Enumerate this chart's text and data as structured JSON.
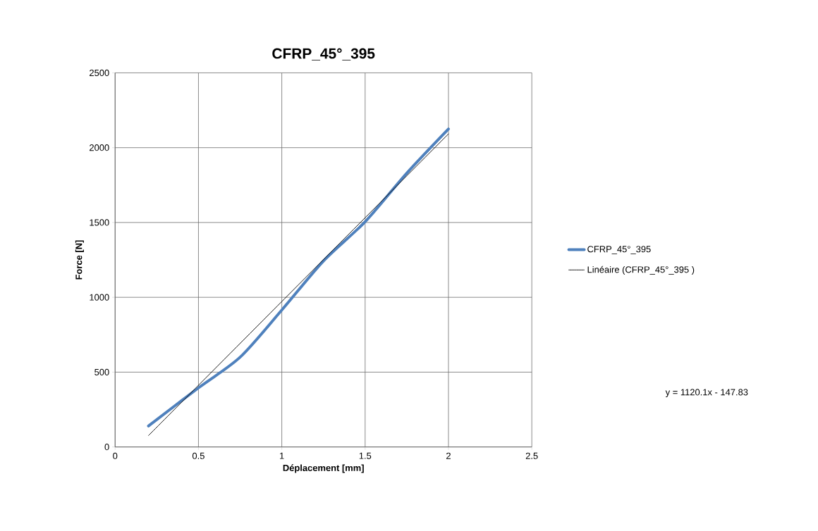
{
  "chart_data": {
    "type": "line",
    "title": "CFRP_45°_395",
    "xlabel": "Déplacement [mm]",
    "ylabel": "Force [N]",
    "xlim": [
      0,
      2.5
    ],
    "ylim": [
      0,
      2500
    ],
    "xticks": [
      0,
      0.5,
      1,
      1.5,
      2,
      2.5
    ],
    "yticks": [
      0,
      500,
      1000,
      1500,
      2000,
      2500
    ],
    "grid": true,
    "legend": "right",
    "series": [
      {
        "name": "CFRP_45°_395",
        "color": "#4f81bd",
        "x": [
          0.2,
          0.5,
          0.75,
          1.0,
          1.25,
          1.5,
          1.75,
          2.0
        ],
        "values": [
          140,
          395,
          600,
          915,
          1243,
          1505,
          1830,
          2125
        ]
      },
      {
        "name": "Linéaire (CFRP_45°_395 )",
        "color": "#000000",
        "x": [
          0.2,
          2.0
        ],
        "values": [
          76,
          2092
        ]
      }
    ],
    "annotations": [
      "y = 1120.1x - 147.83"
    ]
  }
}
